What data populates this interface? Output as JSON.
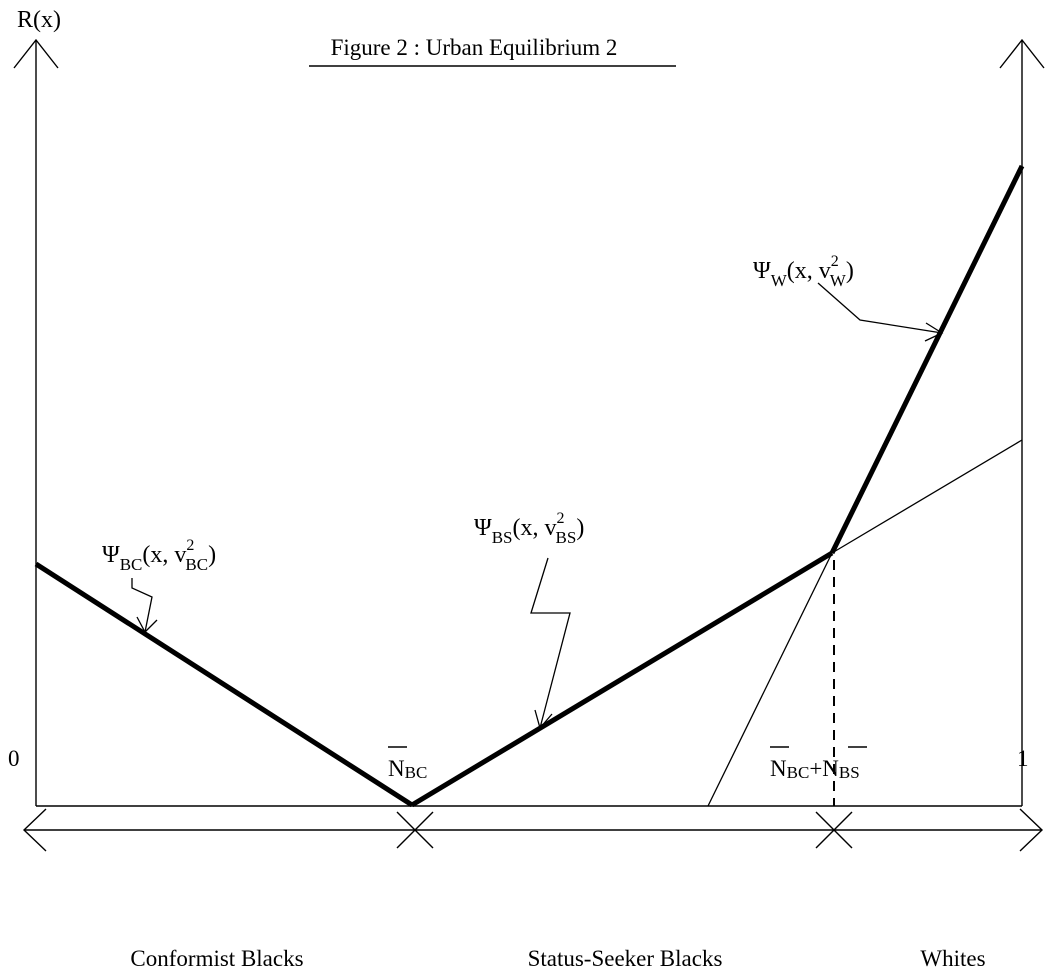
{
  "title": "Figure 2 : Urban Equilibrium 2",
  "y_axis_label": "R(x)",
  "x_ticks": {
    "zero": "0",
    "n_bc": {
      "main": "N",
      "sub": "BC"
    },
    "n_bc_bs": {
      "main1": "N",
      "sub1": "BC",
      "plus": "+",
      "main2": "N",
      "sub2": "BS"
    },
    "one": "1"
  },
  "curves": {
    "psi_bc": {
      "psi": "Ψ",
      "sub": "BC",
      "open": "(x, v",
      "sup": "2",
      "vsub": "BC",
      "close": ")"
    },
    "psi_bs": {
      "psi": "Ψ",
      "sub": "BS",
      "open": "(x, v",
      "sup": "2",
      "vsub": "BS",
      "close": ")"
    },
    "psi_w": {
      "psi": "Ψ",
      "sub": "W",
      "open": "(x, v",
      "sup": "2",
      "vsub": "W",
      "close": ")"
    }
  },
  "zones": {
    "conformist": "Conformist Blacks",
    "status_seeker": "Status-Seeker Blacks",
    "whites": "Whites"
  }
}
